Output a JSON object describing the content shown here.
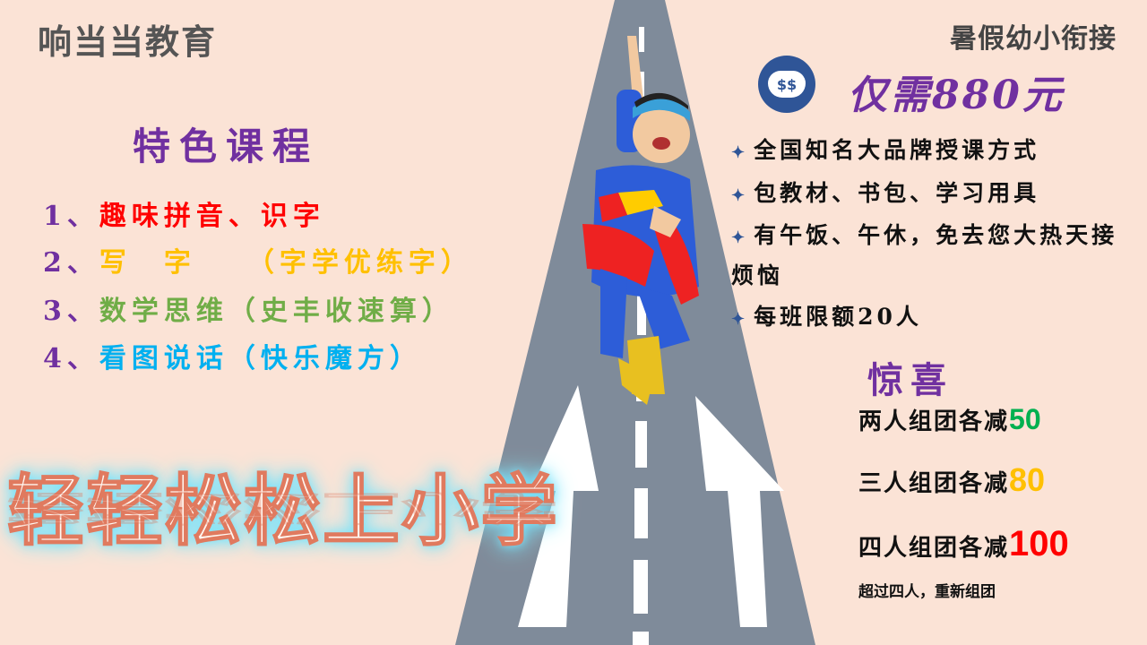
{
  "brand": "响当当教育",
  "top_right": "暑假幼小衔接",
  "courses": {
    "title": "特色课程",
    "items": [
      {
        "num": "1、",
        "text": "趣味拼音、识字",
        "color": "#ff0000"
      },
      {
        "num": "2、",
        "text": "写　字　　（字学优练字）",
        "color": "#ffc000"
      },
      {
        "num": "3、",
        "text": "数学思维（史丰收速算）",
        "color": "#70ad47"
      },
      {
        "num": "4、",
        "text": "看图说话（快乐魔方）",
        "color": "#00b0f0"
      }
    ]
  },
  "slogan": "轻轻松松上小学",
  "price": {
    "icon": "money-bag-icon",
    "icon_text": "$$",
    "text": "仅需880元"
  },
  "features": [
    "全国知名大品牌授课方式",
    "包教材、书包、学习用具",
    "有午饭、午休，免去您大热天接",
    "烦恼",
    "每班限额20人"
  ],
  "surprise": {
    "title": "惊喜",
    "deals": [
      {
        "label": "两人组团各减",
        "amount": "50",
        "color": "#00b050"
      },
      {
        "label": "三人组团各减",
        "amount": "80",
        "color": "#ffc000"
      },
      {
        "label": "四人组团各减",
        "amount": "100",
        "color": "#ff0000"
      }
    ],
    "note": "超过四人，重新组团"
  },
  "colors": {
    "background": "#fbe3d6",
    "road": "#7f8b9a",
    "accent": "#7030a0"
  }
}
